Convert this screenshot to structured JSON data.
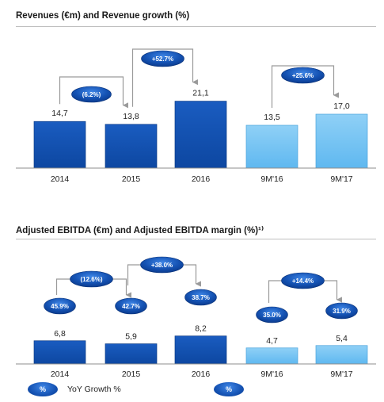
{
  "colors": {
    "dark_bar": "#0d47a1",
    "light_bar": "#5fb8f0",
    "pill_dark": "#0b3b8e",
    "pill_light": "#3f86e6",
    "connector": "#9a9a9a"
  },
  "legend": {
    "pill_yoy": "%",
    "yoy_label": "YoY Growth %",
    "pill_margin": "%"
  },
  "chart_data": [
    {
      "type": "bar",
      "title": "Revenues (€m) and Revenue growth (%)",
      "categories": [
        "2014",
        "2015",
        "2016",
        "9M'16",
        "9M'17"
      ],
      "values": [
        14.7,
        13.8,
        21.1,
        13.5,
        17.0
      ],
      "value_labels": [
        "14,7",
        "13,8",
        "21,1",
        "13,5",
        "17,0"
      ],
      "bar_styles": [
        "dark",
        "dark",
        "dark",
        "light",
        "light"
      ],
      "growth": [
        {
          "from": 0,
          "to": 1,
          "label": "(6.2%)"
        },
        {
          "from": 1,
          "to": 2,
          "label": "+52.7%"
        },
        {
          "from": 3,
          "to": 4,
          "label": "+25.6%"
        }
      ]
    },
    {
      "type": "bar",
      "title": "Adjusted EBITDA (€m) and Adjusted EBITDA margin (%)¹⁾",
      "categories": [
        "2014",
        "2015",
        "2016",
        "9M'16",
        "9M'17"
      ],
      "values": [
        6.8,
        5.9,
        8.2,
        4.7,
        5.4
      ],
      "value_labels": [
        "6,8",
        "5,9",
        "8,2",
        "4,7",
        "5,4"
      ],
      "bar_styles": [
        "dark",
        "dark",
        "dark",
        "light",
        "light"
      ],
      "margins": [
        "45.9%",
        "42.7%",
        "38.7%",
        "35.0%",
        "31.9%"
      ],
      "growth": [
        {
          "from": 0,
          "to": 1,
          "label": "(12.6%)"
        },
        {
          "from": 1,
          "to": 2,
          "label": "+38.0%"
        },
        {
          "from": 3,
          "to": 4,
          "label": "+14.4%"
        }
      ]
    }
  ]
}
